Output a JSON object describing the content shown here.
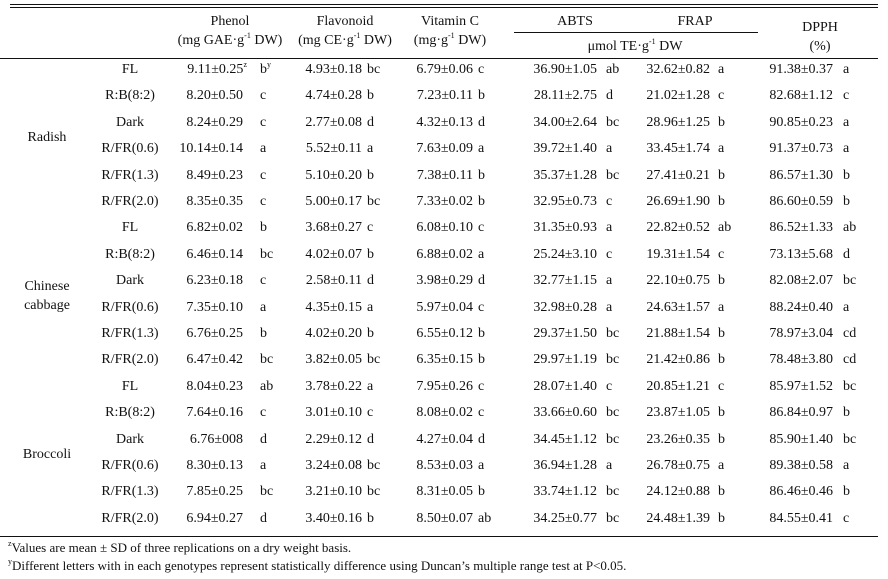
{
  "headers": {
    "phenol": {
      "line1": "Phenol",
      "line2": "(mg GAE·g",
      "sup": "-1",
      "line2b": " DW)"
    },
    "flavonoid": {
      "line1": "Flavonoid",
      "line2": "(mg CE·g",
      "sup": "-1",
      "line2b": " DW)"
    },
    "vitc": {
      "line1": "Vitamin C",
      "line2": "(mg·g",
      "sup": "-1",
      "line2b": " DW)"
    },
    "abts": "ABTS",
    "frap": "FRAP",
    "abts_frap_unit": {
      "pre": "μmol TE·g",
      "sup": "-1",
      "post": " DW"
    },
    "dpph": {
      "line1": "DPPH",
      "line2": "(%)"
    }
  },
  "groups": [
    {
      "name": "Radish",
      "rows": [
        {
          "t": "FL",
          "phenol": [
            "9.11±0.25",
            "b"
          ],
          "flav": [
            "4.93±0.18",
            "bc"
          ],
          "vitc": [
            "6.79±0.06",
            "c"
          ],
          "abts": [
            "36.90±1.05",
            "ab"
          ],
          "frap": [
            "32.62±0.82",
            "a"
          ],
          "dpph": [
            "91.38±0.37",
            "a"
          ],
          "val_sup": "z",
          "let_sup": "y"
        },
        {
          "t": "R:B(8:2)",
          "phenol": [
            "8.20±0.50",
            "c"
          ],
          "flav": [
            "4.74±0.28",
            "b"
          ],
          "vitc": [
            "7.23±0.11",
            "b"
          ],
          "abts": [
            "28.11±2.75",
            "d"
          ],
          "frap": [
            "21.02±1.28",
            "c"
          ],
          "dpph": [
            "82.68±1.12",
            "c"
          ]
        },
        {
          "t": "Dark",
          "phenol": [
            "8.24±0.29",
            "c"
          ],
          "flav": [
            "2.77±0.08",
            "d"
          ],
          "vitc": [
            "4.32±0.13",
            "d"
          ],
          "abts": [
            "34.00±2.64",
            "bc"
          ],
          "frap": [
            "28.96±1.25",
            "b"
          ],
          "dpph": [
            "90.85±0.23",
            "a"
          ]
        },
        {
          "t": "R/FR(0.6)",
          "phenol": [
            "10.14±0.14",
            "a"
          ],
          "flav": [
            "5.52±0.11",
            "a"
          ],
          "vitc": [
            "7.63±0.09",
            "a"
          ],
          "abts": [
            "39.72±1.40",
            "a"
          ],
          "frap": [
            "33.45±1.74",
            "a"
          ],
          "dpph": [
            "91.37±0.73",
            "a"
          ]
        },
        {
          "t": "R/FR(1.3)",
          "phenol": [
            "8.49±0.23",
            "c"
          ],
          "flav": [
            "5.10±0.20",
            "b"
          ],
          "vitc": [
            "7.38±0.11",
            "b"
          ],
          "abts": [
            "35.37±1.28",
            "bc"
          ],
          "frap": [
            "27.41±0.21",
            "b"
          ],
          "dpph": [
            "86.57±1.30",
            "b"
          ]
        },
        {
          "t": "R/FR(2.0)",
          "phenol": [
            "8.35±0.35",
            "c"
          ],
          "flav": [
            "5.00±0.17",
            "bc"
          ],
          "vitc": [
            "7.33±0.02",
            "b"
          ],
          "abts": [
            "32.95±0.73",
            "c"
          ],
          "frap": [
            "26.69±1.90",
            "b"
          ],
          "dpph": [
            "86.60±0.59",
            "b"
          ]
        }
      ]
    },
    {
      "name": "Chinese cabbage",
      "rows": [
        {
          "t": "FL",
          "phenol": [
            "6.82±0.02",
            "b"
          ],
          "flav": [
            "3.68±0.27",
            "c"
          ],
          "vitc": [
            "6.08±0.10",
            "c"
          ],
          "abts": [
            "31.35±0.93",
            "a"
          ],
          "frap": [
            "22.82±0.52",
            "ab"
          ],
          "dpph": [
            "86.52±1.33",
            "ab"
          ]
        },
        {
          "t": "R:B(8:2)",
          "phenol": [
            "6.46±0.14",
            "bc"
          ],
          "flav": [
            "4.02±0.07",
            "b"
          ],
          "vitc": [
            "6.88±0.02",
            "a"
          ],
          "abts": [
            "25.24±3.10",
            "c"
          ],
          "frap": [
            "19.31±1.54",
            "c"
          ],
          "dpph": [
            "73.13±5.68",
            "d"
          ]
        },
        {
          "t": "Dark",
          "phenol": [
            "6.23±0.18",
            "c"
          ],
          "flav": [
            "2.58±0.11",
            "d"
          ],
          "vitc": [
            "3.98±0.29",
            "d"
          ],
          "abts": [
            "32.77±1.15",
            "a"
          ],
          "frap": [
            "22.10±0.75",
            "b"
          ],
          "dpph": [
            "82.08±2.07",
            "bc"
          ]
        },
        {
          "t": "R/FR(0.6)",
          "phenol": [
            "7.35±0.10",
            "a"
          ],
          "flav": [
            "4.35±0.15",
            "a"
          ],
          "vitc": [
            "5.97±0.04",
            "c"
          ],
          "abts": [
            "32.98±0.28",
            "a"
          ],
          "frap": [
            "24.63±1.57",
            "a"
          ],
          "dpph": [
            "88.24±0.40",
            "a"
          ]
        },
        {
          "t": "R/FR(1.3)",
          "phenol": [
            "6.76±0.25",
            "b"
          ],
          "flav": [
            "4.02±0.20",
            "b"
          ],
          "vitc": [
            "6.55±0.12",
            "b"
          ],
          "abts": [
            "29.37±1.50",
            "bc"
          ],
          "frap": [
            "21.88±1.54",
            "b"
          ],
          "dpph": [
            "78.97±3.04",
            "cd"
          ]
        },
        {
          "t": "R/FR(2.0)",
          "phenol": [
            "6.47±0.42",
            "bc"
          ],
          "flav": [
            "3.82±0.05",
            "bc"
          ],
          "vitc": [
            "6.35±0.15",
            "b"
          ],
          "abts": [
            "29.97±1.19",
            "bc"
          ],
          "frap": [
            "21.42±0.86",
            "b"
          ],
          "dpph": [
            "78.48±3.80",
            "cd"
          ]
        }
      ]
    },
    {
      "name": "Broccoli",
      "rows": [
        {
          "t": "FL",
          "phenol": [
            "8.04±0.23",
            "ab"
          ],
          "flav": [
            "3.78±0.22",
            "a"
          ],
          "vitc": [
            "7.95±0.26",
            "c"
          ],
          "abts": [
            "28.07±1.40",
            "c"
          ],
          "frap": [
            "20.85±1.21",
            "c"
          ],
          "dpph": [
            "85.97±1.52",
            "bc"
          ]
        },
        {
          "t": "R:B(8:2)",
          "phenol": [
            "7.64±0.16",
            "c"
          ],
          "flav": [
            "3.01±0.10",
            "c"
          ],
          "vitc": [
            "8.08±0.02",
            "c"
          ],
          "abts": [
            "33.66±0.60",
            "bc"
          ],
          "frap": [
            "23.87±1.05",
            "b"
          ],
          "dpph": [
            "86.84±0.97",
            "b"
          ]
        },
        {
          "t": "Dark",
          "phenol": [
            "6.76±008",
            "d"
          ],
          "flav": [
            "2.29±0.12",
            "d"
          ],
          "vitc": [
            "4.27±0.04",
            "d"
          ],
          "abts": [
            "34.45±1.12",
            "bc"
          ],
          "frap": [
            "23.26±0.35",
            "b"
          ],
          "dpph": [
            "85.90±1.40",
            "bc"
          ]
        },
        {
          "t": "R/FR(0.6)",
          "phenol": [
            "8.30±0.13",
            "a"
          ],
          "flav": [
            "3.24±0.08",
            "bc"
          ],
          "vitc": [
            "8.53±0.03",
            "a"
          ],
          "abts": [
            "36.94±1.28",
            "a"
          ],
          "frap": [
            "26.78±0.75",
            "a"
          ],
          "dpph": [
            "89.38±0.58",
            "a"
          ]
        },
        {
          "t": "R/FR(1.3)",
          "phenol": [
            "7.85±0.25",
            "bc"
          ],
          "flav": [
            "3.21±0.10",
            "bc"
          ],
          "vitc": [
            "8.31±0.05",
            "b"
          ],
          "abts": [
            "33.74±1.12",
            "bc"
          ],
          "frap": [
            "24.12±0.88",
            "b"
          ],
          "dpph": [
            "86.46±0.46",
            "b"
          ]
        },
        {
          "t": "R/FR(2.0)",
          "phenol": [
            "6.94±0.27",
            "d"
          ],
          "flav": [
            "3.40±0.16",
            "b"
          ],
          "vitc": [
            "8.50±0.07",
            "ab"
          ],
          "abts": [
            "34.25±0.77",
            "bc"
          ],
          "frap": [
            "24.48±1.39",
            "b"
          ],
          "dpph": [
            "84.55±0.41",
            "c"
          ]
        }
      ]
    }
  ],
  "footnotes": [
    {
      "mark": "z",
      "text": "Values are mean ± SD of three replications on a dry weight basis."
    },
    {
      "mark": "y",
      "text": "Different letters with in each genotypes represent statistically difference using Duncan’s multiple range test at P<0.05."
    }
  ]
}
